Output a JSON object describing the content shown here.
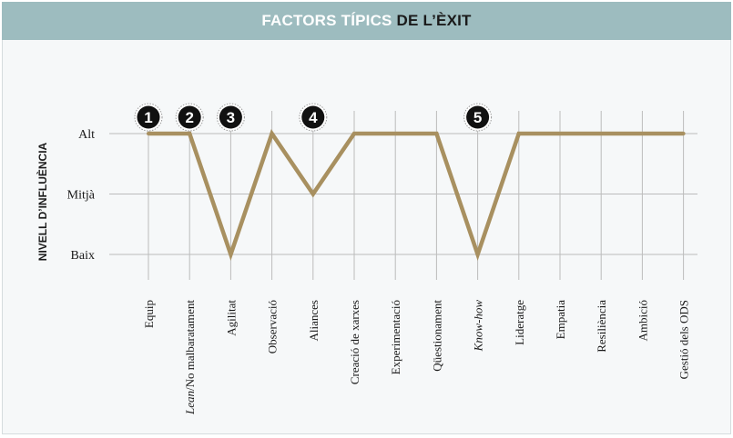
{
  "header": {
    "title_part1": "FACTORS TÍPICS ",
    "title_part2": "DE L’ÈXIT"
  },
  "colors": {
    "banner": "#9dbcbf",
    "line": "#a89060",
    "grid": "#bcbcbc",
    "badge": "#111111"
  },
  "chart_data": {
    "type": "line",
    "title": "FACTORS TÍPICS DE L’ÈXIT",
    "ylabel": "NIVELL D’INFLUÈNCIA",
    "xlabel": "",
    "y_levels": [
      "Baix",
      "Mitjà",
      "Alt"
    ],
    "categories": [
      "Equip",
      "Lean/No malbaratament",
      "Agilitat",
      "Observació",
      "Aliances",
      "Creació de xarxes",
      "Experimentació",
      "Qüestionament",
      "Know-how",
      "Lideratge",
      "Empatia",
      "Resiliència",
      "Ambició",
      "Gestió dels ODS"
    ],
    "italic_parts": {
      "1": "Lean",
      "8": "Know-how"
    },
    "series": [
      {
        "values": [
          3,
          3,
          1,
          3,
          2,
          3,
          3,
          3,
          1,
          3,
          3,
          3,
          3,
          3
        ]
      }
    ],
    "markers": [
      {
        "label": "1",
        "category_index": 0
      },
      {
        "label": "2",
        "category_index": 1
      },
      {
        "label": "3",
        "category_index": 2
      },
      {
        "label": "4",
        "category_index": 4
      },
      {
        "label": "5",
        "category_index": 8
      }
    ],
    "ylim": [
      1,
      3
    ],
    "grid": true
  }
}
